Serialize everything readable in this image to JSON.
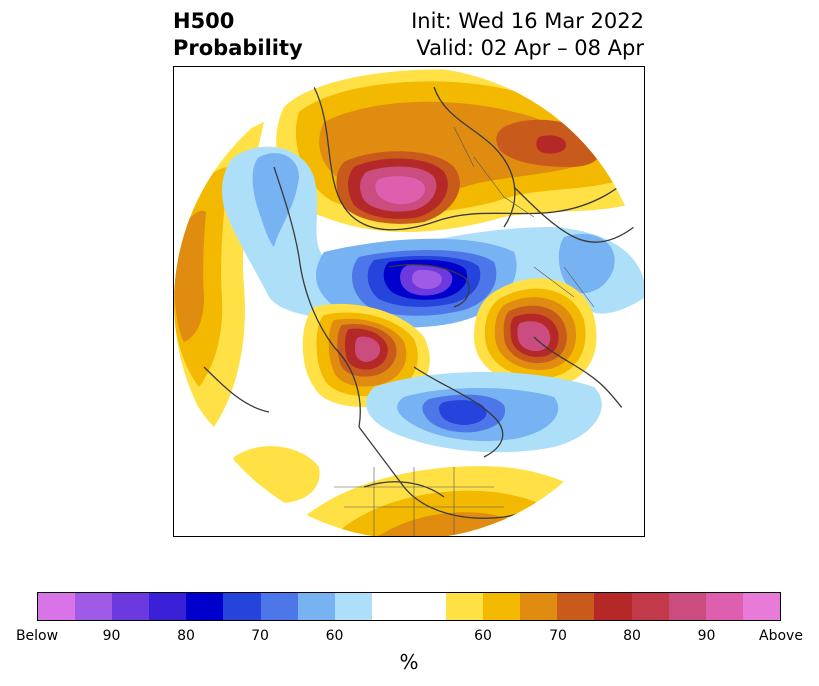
{
  "title": {
    "left_line1": "H500",
    "left_line2": "Probability",
    "right_line1": "Init: Wed 16 Mar 2022",
    "right_line2": "Valid: 02 Apr – 08 Apr"
  },
  "colorbar": {
    "unit": "%",
    "colors": [
      "#d873e8",
      "#9f5ae6",
      "#6b39dd",
      "#3a20d6",
      "#0000cc",
      "#2444db",
      "#4d77e8",
      "#77b2f2",
      "#addff9",
      "#ffffff",
      "#ffffff",
      "#ffe146",
      "#f3b800",
      "#e08c10",
      "#c85a1c",
      "#b42828",
      "#c23a4a",
      "#cb4c7e",
      "#dd5fad",
      "#e87ad8"
    ],
    "tick_labels": [
      "Below",
      "90",
      "80",
      "70",
      "60",
      "60",
      "70",
      "80",
      "90",
      "Above"
    ]
  },
  "map": {
    "colors": {
      "ocean_background": "#ffffff",
      "coastline": "#3a3a3a",
      "above_1": "#ffe146",
      "above_2": "#f3b800",
      "above_3": "#e08c10",
      "above_4": "#c85a1c",
      "above_5": "#b42828",
      "above_6": "#cb4c7e",
      "below_1": "#addff9",
      "below_2": "#77b2f2",
      "below_3": "#4d77e8",
      "below_4": "#2444db",
      "below_5": "#0000cc",
      "below_6": "#6b39dd",
      "below_7": "#9f5ae6"
    }
  }
}
